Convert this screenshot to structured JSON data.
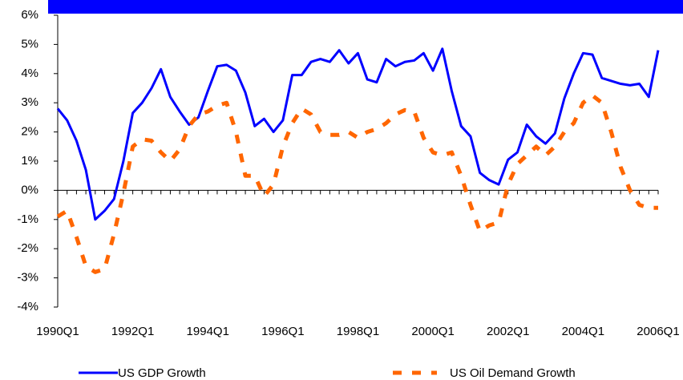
{
  "chart_data": {
    "type": "line",
    "categories": [
      "1990Q1",
      null,
      null,
      null,
      null,
      null,
      null,
      null,
      "1992Q1",
      null,
      null,
      null,
      null,
      null,
      null,
      null,
      "1994Q1",
      null,
      null,
      null,
      null,
      null,
      null,
      null,
      "1996Q1",
      null,
      null,
      null,
      null,
      null,
      null,
      null,
      "1998Q1",
      null,
      null,
      null,
      null,
      null,
      null,
      null,
      "2000Q1",
      null,
      null,
      null,
      null,
      null,
      null,
      null,
      "2002Q1",
      null,
      null,
      null,
      null,
      null,
      null,
      null,
      "2004Q1",
      null,
      null,
      null,
      null,
      null,
      null,
      null,
      "2006Q1"
    ],
    "series": [
      {
        "name": "US GDP Growth",
        "color": "#0000ff",
        "dashed": false,
        "values": [
          2.8,
          2.4,
          1.7,
          0.7,
          -1.0,
          -0.7,
          -0.3,
          1.0,
          2.65,
          3.0,
          3.5,
          4.15,
          3.2,
          2.7,
          2.25,
          2.5,
          3.4,
          4.25,
          4.3,
          4.1,
          3.35,
          2.2,
          2.45,
          2.0,
          2.4,
          3.95,
          3.95,
          4.4,
          4.5,
          4.4,
          4.8,
          4.35,
          4.7,
          3.8,
          3.7,
          4.5,
          4.25,
          4.4,
          4.45,
          4.7,
          4.1,
          4.85,
          3.4,
          2.2,
          1.85,
          0.6,
          0.35,
          0.2,
          1.05,
          1.3,
          2.25,
          1.85,
          1.6,
          1.95,
          3.15,
          4.0,
          4.7,
          4.65,
          3.85,
          3.75,
          3.65,
          3.6,
          3.65,
          3.2,
          4.8
        ]
      },
      {
        "name": "US Oil Demand Growth",
        "color": "#ff6600",
        "dashed": true,
        "values": [
          -0.9,
          -0.7,
          -1.6,
          -2.6,
          -2.8,
          -2.7,
          -1.5,
          -0.1,
          1.5,
          1.75,
          1.7,
          1.3,
          1.0,
          1.4,
          2.2,
          2.6,
          2.7,
          2.9,
          3.0,
          2.0,
          0.5,
          0.5,
          -0.2,
          0.2,
          1.5,
          2.3,
          2.8,
          2.6,
          2.0,
          1.9,
          1.9,
          2.0,
          1.8,
          2.0,
          2.1,
          2.3,
          2.6,
          2.75,
          2.7,
          1.8,
          1.3,
          1.2,
          1.3,
          0.5,
          -0.5,
          -1.4,
          -1.2,
          -1.1,
          0.2,
          0.9,
          1.2,
          1.5,
          1.2,
          1.5,
          2.0,
          2.3,
          3.0,
          3.25,
          3.0,
          2.0,
          0.8,
          0.0,
          -0.5,
          -0.6,
          -0.6
        ]
      }
    ],
    "ylim": [
      -4,
      6
    ],
    "yticks": [
      {
        "value": -4,
        "label": "-4%"
      },
      {
        "value": -3,
        "label": "-3%"
      },
      {
        "value": -2,
        "label": "-2%"
      },
      {
        "value": -1,
        "label": "-1%"
      },
      {
        "value": 0,
        "label": "0%"
      },
      {
        "value": 1,
        "label": "1%"
      },
      {
        "value": 2,
        "label": "2%"
      },
      {
        "value": 3,
        "label": "3%"
      },
      {
        "value": 4,
        "label": "4%"
      },
      {
        "value": 5,
        "label": "5%"
      },
      {
        "value": 6,
        "label": "6%"
      }
    ],
    "grid": false,
    "legend": "bottom"
  }
}
